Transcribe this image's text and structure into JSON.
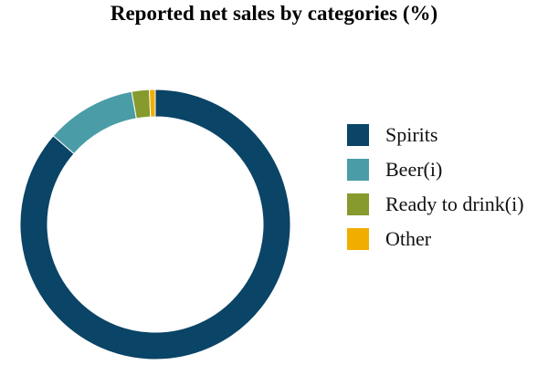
{
  "chart_data": {
    "type": "pie",
    "title": "Reported net sales by categories (%)",
    "legend_position": "right",
    "series": [
      {
        "name": "Spirits",
        "value": 86.4,
        "color": "#0a4466"
      },
      {
        "name": "Beer(i)",
        "value": 10.8,
        "color": "#4a9da6"
      },
      {
        "name": "Ready to drink(i)",
        "value": 2.1,
        "color": "#869a2d"
      },
      {
        "name": "Other",
        "value": 0.7,
        "color": "#f2ae00"
      }
    ]
  }
}
